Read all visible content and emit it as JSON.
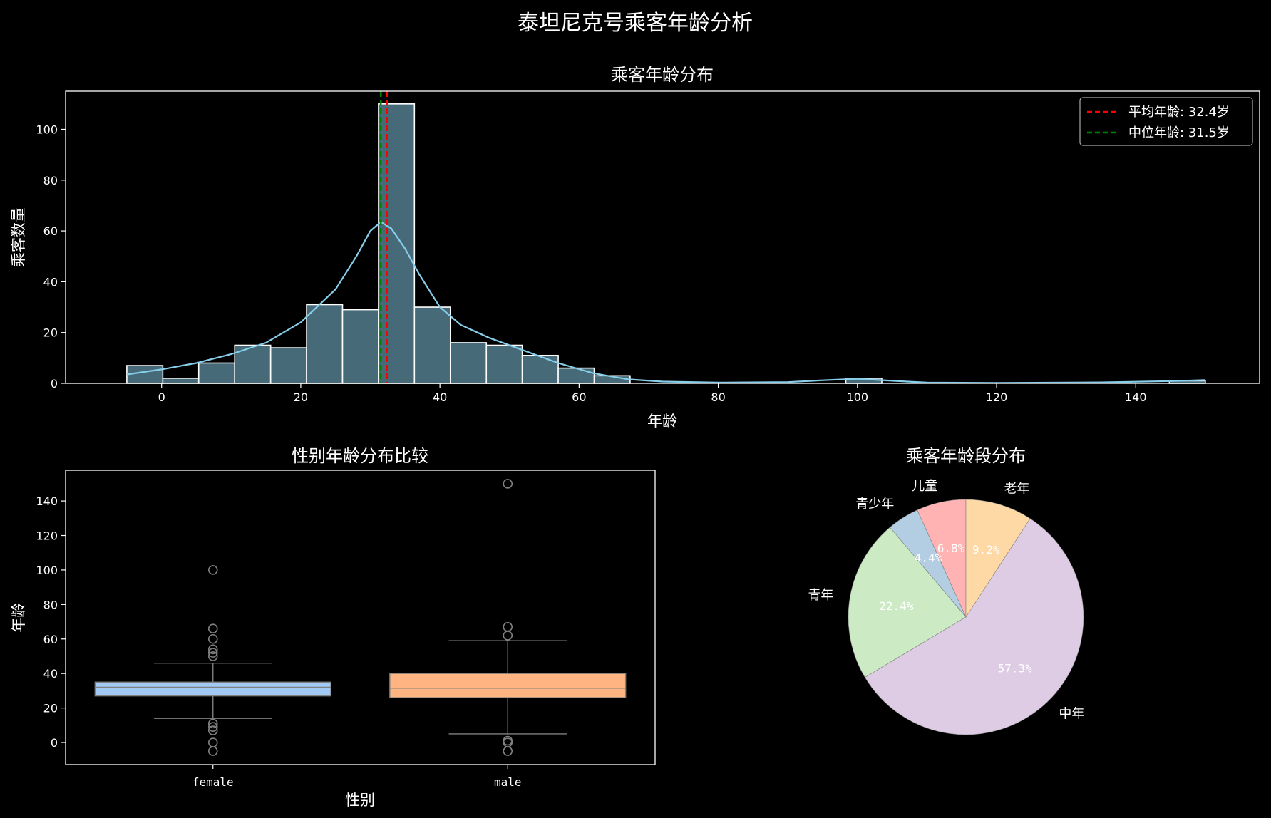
{
  "figure": {
    "title": "泰坦尼克号乘客年龄分析",
    "background": "#000000",
    "foreground": "#ffffff"
  },
  "chart_data": [
    {
      "type": "bar",
      "title": "乘客年龄分布",
      "xlabel": "年龄",
      "ylabel": "乘客数量",
      "xlim": [
        -13.8,
        157.8
      ],
      "ylim": [
        0,
        115
      ],
      "xticks": [
        0,
        20,
        40,
        60,
        80,
        100,
        120,
        140
      ],
      "yticks": [
        0,
        20,
        40,
        60,
        80,
        100
      ],
      "bar_color": "#476a78",
      "kde_color": "#87ceeb",
      "bins": [
        {
          "x0": -5.0,
          "x1": 0.17,
          "count": 7
        },
        {
          "x0": 0.17,
          "x1": 5.33,
          "count": 2
        },
        {
          "x0": 5.33,
          "x1": 10.5,
          "count": 8
        },
        {
          "x0": 10.5,
          "x1": 15.67,
          "count": 15
        },
        {
          "x0": 15.67,
          "x1": 20.83,
          "count": 14
        },
        {
          "x0": 20.83,
          "x1": 26.0,
          "count": 31
        },
        {
          "x0": 26.0,
          "x1": 31.17,
          "count": 29
        },
        {
          "x0": 31.17,
          "x1": 36.33,
          "count": 110
        },
        {
          "x0": 36.33,
          "x1": 41.5,
          "count": 30
        },
        {
          "x0": 41.5,
          "x1": 46.67,
          "count": 16
        },
        {
          "x0": 46.67,
          "x1": 51.83,
          "count": 15
        },
        {
          "x0": 51.83,
          "x1": 57.0,
          "count": 11
        },
        {
          "x0": 57.0,
          "x1": 62.17,
          "count": 6
        },
        {
          "x0": 62.17,
          "x1": 67.33,
          "count": 3
        },
        {
          "x0": 98.33,
          "x1": 103.5,
          "count": 2
        },
        {
          "x0": 144.83,
          "x1": 150.0,
          "count": 1
        }
      ],
      "kde": [
        [
          -5,
          3.5
        ],
        [
          0,
          5.5
        ],
        [
          5,
          8
        ],
        [
          10,
          11.5
        ],
        [
          15,
          16
        ],
        [
          20,
          24
        ],
        [
          25,
          37
        ],
        [
          28,
          50
        ],
        [
          30,
          60
        ],
        [
          31.5,
          63.5
        ],
        [
          33,
          61
        ],
        [
          35,
          53
        ],
        [
          37,
          43
        ],
        [
          40,
          30
        ],
        [
          43,
          23
        ],
        [
          47,
          18
        ],
        [
          52,
          13
        ],
        [
          57,
          8
        ],
        [
          62,
          4
        ],
        [
          67,
          1.6
        ],
        [
          72,
          0.7
        ],
        [
          80,
          0.3
        ],
        [
          90,
          0.5
        ],
        [
          95,
          1.2
        ],
        [
          100,
          1.8
        ],
        [
          105,
          1
        ],
        [
          110,
          0.3
        ],
        [
          120,
          0.2
        ],
        [
          135,
          0.4
        ],
        [
          145,
          0.9
        ],
        [
          150,
          1.3
        ]
      ],
      "lines": [
        {
          "label": "平均年龄: 32.4岁",
          "x": 32.4,
          "color": "#ff0000",
          "style": "dashed"
        },
        {
          "label": "中位年龄: 31.5岁",
          "x": 31.5,
          "color": "#008000",
          "style": "dashed"
        }
      ],
      "legend": "top-right"
    },
    {
      "type": "box",
      "title": "性别年龄分布比较",
      "xlabel": "性别",
      "ylabel": "年龄",
      "ylim": [
        -12.8,
        157.8
      ],
      "yticks": [
        0,
        20,
        40,
        60,
        80,
        100,
        120,
        140
      ],
      "categories": [
        "female",
        "male"
      ],
      "boxes": [
        {
          "name": "female",
          "color": "#a1c9f4",
          "q1": 27,
          "median": 32,
          "q3": 35,
          "whislo": 14,
          "whishi": 46,
          "fliers": [
            100,
            66,
            60,
            54,
            52,
            50,
            11,
            9,
            7,
            0,
            -5
          ]
        },
        {
          "name": "male",
          "color": "#ffb482",
          "q1": 26,
          "median": 31.5,
          "q3": 40,
          "whislo": 5,
          "whishi": 59,
          "fliers": [
            150,
            67,
            62,
            1,
            0,
            -5
          ]
        }
      ]
    },
    {
      "type": "pie",
      "title": "乘客年龄段分布",
      "slices": [
        {
          "label": "儿童",
          "value": 6.8,
          "pct": "6.8%",
          "color": "#ffb3b3"
        },
        {
          "label": "青少年",
          "value": 4.4,
          "pct": "4.4%",
          "color": "#b3cde3"
        },
        {
          "label": "青年",
          "value": 22.4,
          "pct": "22.4%",
          "color": "#ccebc5"
        },
        {
          "label": "中年",
          "value": 57.3,
          "pct": "57.3%",
          "color": "#decbe4"
        },
        {
          "label": "老年",
          "value": 9.2,
          "pct": "9.2%",
          "color": "#fed9a6"
        }
      ]
    }
  ]
}
